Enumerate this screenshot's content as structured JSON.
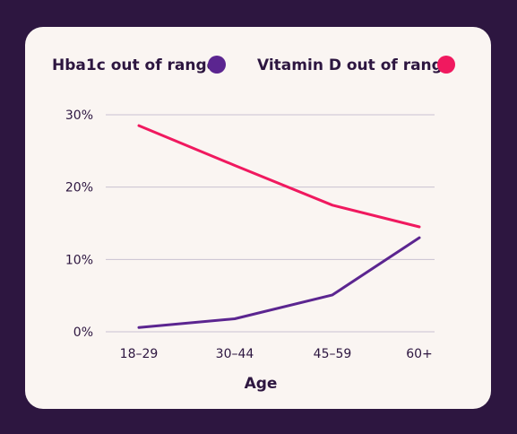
{
  "chart_data": {
    "type": "line",
    "categories": [
      "18–29",
      "30–44",
      "45–59",
      "60+"
    ],
    "series": [
      {
        "name": "Hba1c out of range",
        "color": "#5b2590",
        "values": [
          0.6,
          1.8,
          5.1,
          13.0
        ]
      },
      {
        "name": "Vitamin D out of range",
        "color": "#f0195f",
        "values": [
          28.5,
          23.0,
          17.5,
          14.5
        ]
      }
    ],
    "y_ticks": [
      "0%",
      "10%",
      "20%",
      "30%"
    ],
    "ylim": [
      0,
      30
    ],
    "xlabel": "Age",
    "grid": true,
    "legend_position": "top"
  }
}
